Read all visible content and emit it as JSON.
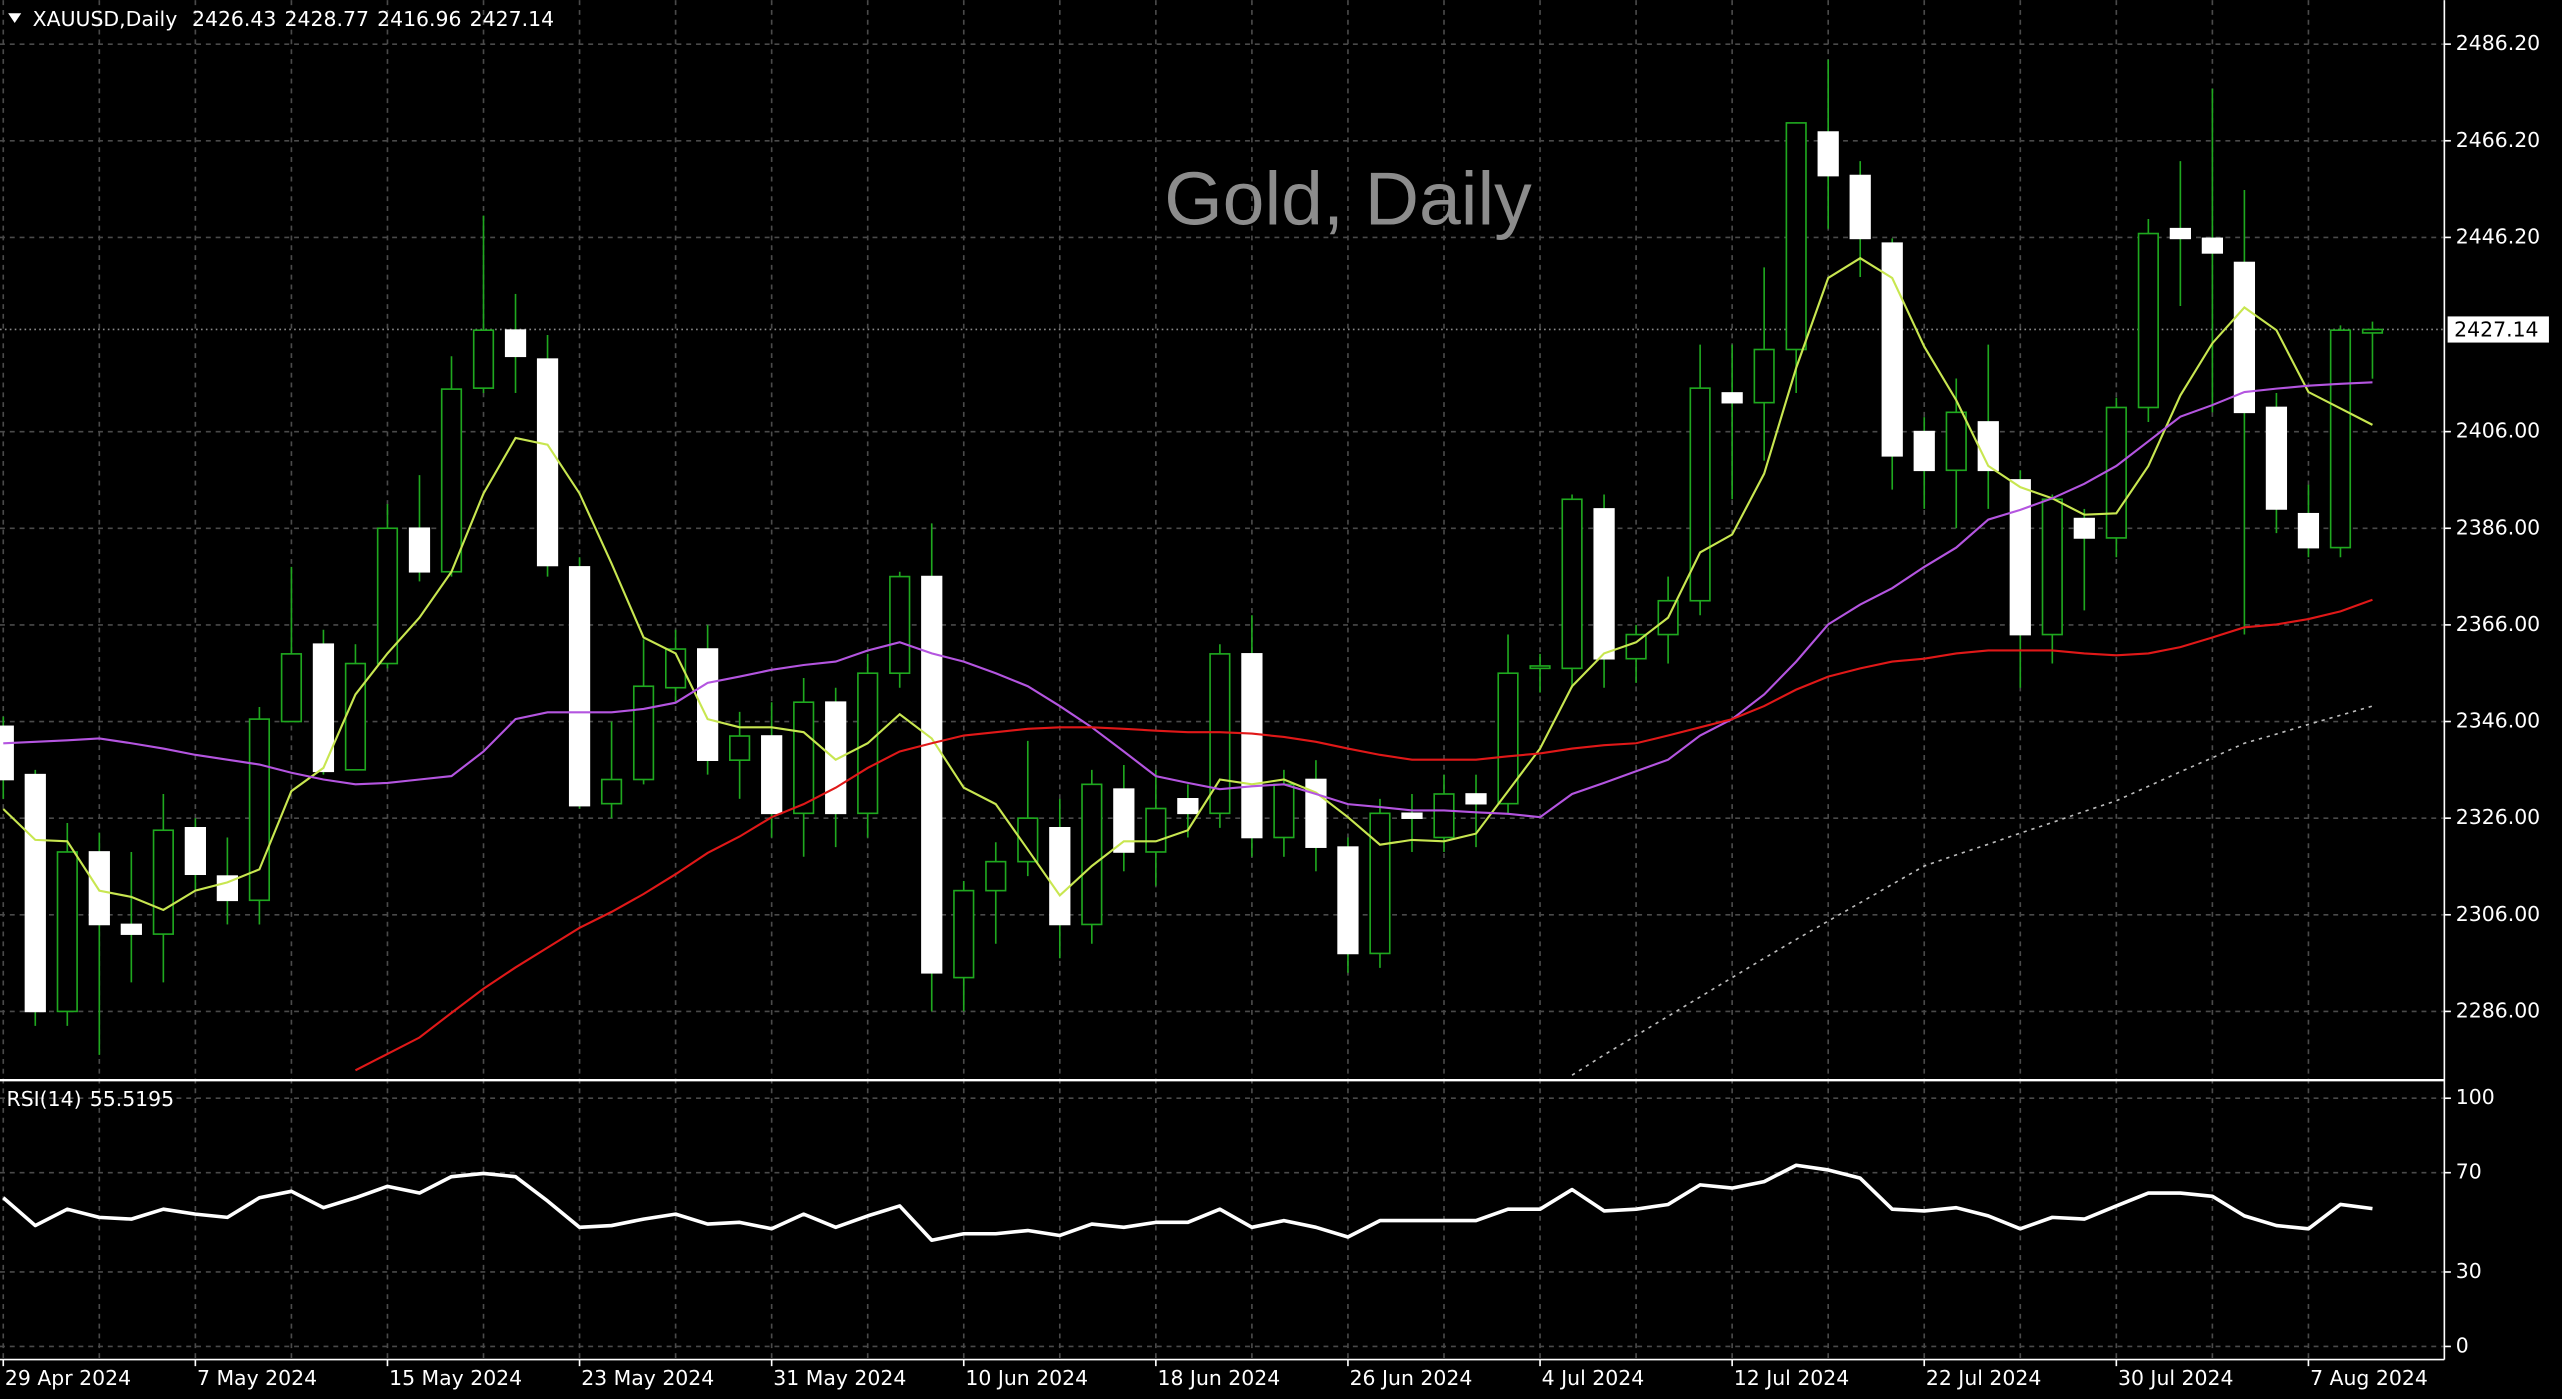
{
  "chart_data": [
    {
      "type": "candlestick",
      "symbol": "XAUUSD,Daily",
      "title": "Gold, Daily",
      "categories": [
        "29 Apr 2024",
        null,
        null,
        null,
        null,
        null,
        "7 May 2024",
        null,
        null,
        null,
        null,
        null,
        "15 May 2024",
        null,
        null,
        null,
        null,
        null,
        "23 May 2024",
        null,
        null,
        null,
        null,
        null,
        "31 May 2024",
        null,
        null,
        null,
        null,
        null,
        "10 Jun 2024",
        null,
        null,
        null,
        null,
        null,
        "18 Jun 2024",
        null,
        null,
        null,
        null,
        null,
        "26 Jun 2024",
        null,
        null,
        null,
        null,
        null,
        "4 Jul 2024",
        null,
        null,
        null,
        null,
        null,
        "12 Jul 2024",
        null,
        null,
        null,
        null,
        null,
        "22 Jul 2024",
        null,
        null,
        null,
        null,
        null,
        "30 Jul 2024",
        null,
        null,
        null,
        null,
        null,
        "7 Aug 2024",
        null,
        null
      ],
      "open": [
        2345,
        2335,
        2286,
        2319,
        2304,
        2302,
        2324,
        2314,
        2309,
        2346,
        2362,
        2336,
        2358,
        2386,
        2377,
        2415,
        2427,
        2421,
        2378,
        2329,
        2334,
        2353,
        2361,
        2338,
        2343,
        2327,
        2350,
        2327,
        2356,
        2376,
        2293,
        2311,
        2317,
        2324,
        2304,
        2332,
        2319,
        2330,
        2327,
        2360,
        2322,
        2334,
        2320,
        2298,
        2327,
        2322,
        2331,
        2329,
        2357,
        2357,
        2390,
        2359,
        2364,
        2371,
        2414,
        2412,
        2423,
        2468,
        2459,
        2445,
        2406,
        2398,
        2408,
        2396,
        2364,
        2388,
        2384,
        2411,
        2448,
        2446,
        2441,
        2411,
        2389,
        2382,
        2426.43
      ],
      "high": [
        2347,
        2336,
        2325,
        2323,
        2319,
        2331,
        2326,
        2322,
        2349,
        2378,
        2365,
        2362,
        2391,
        2397,
        2421.6,
        2450.7,
        2434.5,
        2426,
        2380,
        2346,
        2363,
        2365,
        2366,
        2348,
        2350,
        2355,
        2353,
        2360,
        2377,
        2387,
        2313,
        2321,
        2342,
        2330,
        2336,
        2337,
        2336,
        2333,
        2362,
        2368,
        2336,
        2338,
        2322,
        2330,
        2331,
        2335,
        2335,
        2364,
        2360,
        2393,
        2393,
        2366,
        2376,
        2424,
        2424,
        2440,
        2470,
        2483,
        2462,
        2446,
        2409,
        2417,
        2424,
        2398,
        2393,
        2390,
        2413,
        2450,
        2462,
        2477,
        2456,
        2414,
        2395,
        2428,
        2428.77
      ],
      "low": [
        2330,
        2283,
        2283,
        2277,
        2292,
        2292,
        2311,
        2304,
        2304,
        2346,
        2335,
        2336,
        2357,
        2375,
        2376,
        2414,
        2414,
        2376,
        2328,
        2326,
        2333,
        2350,
        2335,
        2330,
        2322,
        2318,
        2320,
        2322,
        2353,
        2286,
        2286,
        2300,
        2314,
        2297,
        2300,
        2315,
        2312,
        2322,
        2324,
        2318,
        2318,
        2315,
        2294,
        2295,
        2319,
        2319,
        2320,
        2327,
        2352,
        2353,
        2353,
        2354,
        2358,
        2368,
        2392,
        2400,
        2414,
        2448,
        2438,
        2394,
        2390,
        2386,
        2390,
        2353,
        2358,
        2369,
        2380,
        2408,
        2432,
        2410,
        2364,
        2385,
        2380,
        2380,
        2416.96
      ],
      "close": [
        2334,
        2286,
        2319,
        2304,
        2302,
        2323.5,
        2314.4,
        2309,
        2346.5,
        2360,
        2335.7,
        2358,
        2386,
        2377,
        2414.8,
        2427,
        2421.6,
        2378.3,
        2328.6,
        2334,
        2353.3,
        2361,
        2338,
        2343,
        2327,
        2350,
        2327,
        2356,
        2376,
        2294,
        2311,
        2317,
        2326,
        2304,
        2333,
        2319,
        2328,
        2327,
        2360,
        2322,
        2333,
        2320,
        2298,
        2327,
        2326,
        2331,
        2329,
        2356,
        2357.5,
        2392,
        2359,
        2364,
        2371,
        2415,
        2412,
        2423,
        2469.9,
        2459,
        2446,
        2401,
        2398,
        2410,
        2398,
        2364,
        2392,
        2384,
        2411,
        2447,
        2446,
        2443,
        2410,
        2390,
        2382,
        2427,
        2427.14
      ],
      "up_color": "#1fa81f",
      "down_color": "#ffffff",
      "lines": [
        {
          "color": "#c8e650",
          "style": "solid",
          "values": [
            2327.9,
            2321.5,
            2321.2,
            2311.0,
            2309.7,
            2307.0,
            2311.0,
            2312.7,
            2315.4,
            2331.6,
            2336.4,
            2351.6,
            2360.1,
            2367.5,
            2377.0,
            2393.2,
            2404.7,
            2403.3,
            2393.2,
            2378.7,
            2363.4,
            2360.1,
            2346.5,
            2344.8,
            2344.8,
            2343.8,
            2338.1,
            2341.5,
            2347.5,
            2342.5,
            2332.3,
            2328.9,
            2319.5,
            2310.0,
            2316.1,
            2321.2,
            2321.2,
            2323.5,
            2334.0,
            2333.0,
            2334.0,
            2331.3,
            2326.2,
            2320.5,
            2321.5,
            2321.2,
            2322.8,
            2331.6,
            2340.4,
            2353.3,
            2360.1,
            2362.4,
            2367.5,
            2381.0,
            2384.7,
            2397.3,
            2419.2,
            2437.8,
            2441.9,
            2437.8,
            2423.6,
            2412.5,
            2398.9,
            2394.5,
            2392.2,
            2388.8,
            2389.1,
            2398.9,
            2413.5,
            2424.3,
            2431.7,
            2427.0,
            2414.2,
            2410.8,
            2407.4
          ]
        },
        {
          "color": "#b455e0",
          "style": "solid",
          "values": [
            2341.5,
            2341.8,
            2342.1,
            2342.5,
            2341.5,
            2340.4,
            2339.1,
            2338.1,
            2337.1,
            2335.4,
            2334.0,
            2333.0,
            2333.3,
            2334.0,
            2334.7,
            2339.8,
            2346.5,
            2347.9,
            2347.9,
            2347.9,
            2348.6,
            2349.9,
            2354.0,
            2355.3,
            2356.7,
            2357.7,
            2358.4,
            2360.7,
            2362.4,
            2360.1,
            2358.4,
            2356.0,
            2353.3,
            2349.2,
            2344.8,
            2339.8,
            2334.7,
            2333.3,
            2332.0,
            2332.6,
            2333.0,
            2331.0,
            2328.9,
            2328.3,
            2327.6,
            2327.6,
            2327.2,
            2326.9,
            2326.2,
            2331.0,
            2333.3,
            2335.7,
            2338.1,
            2343.1,
            2346.5,
            2351.6,
            2358.4,
            2366.1,
            2370.2,
            2373.6,
            2378.0,
            2382.0,
            2387.8,
            2389.8,
            2392.2,
            2395.2,
            2398.9,
            2404.0,
            2409.1,
            2411.5,
            2414.2,
            2414.9,
            2415.5,
            2415.9,
            2416.2
          ]
        },
        {
          "color": "#e01818",
          "style": "solid",
          "values": [
            null,
            null,
            null,
            null,
            null,
            null,
            null,
            null,
            null,
            null,
            null,
            2273.8,
            2277.2,
            2280.6,
            2285.7,
            2290.7,
            2295.1,
            2299.2,
            2303.3,
            2306.6,
            2310.3,
            2314.4,
            2318.8,
            2322.2,
            2326.2,
            2328.9,
            2332.3,
            2336.4,
            2339.8,
            2341.5,
            2343.1,
            2343.8,
            2344.5,
            2344.8,
            2344.8,
            2344.5,
            2344.1,
            2343.8,
            2343.8,
            2343.5,
            2342.8,
            2341.8,
            2340.4,
            2339.1,
            2338.1,
            2338.1,
            2338.1,
            2338.8,
            2339.4,
            2340.4,
            2341.1,
            2341.5,
            2343.1,
            2344.8,
            2346.5,
            2349.2,
            2352.6,
            2355.3,
            2357.0,
            2358.4,
            2359.0,
            2360.1,
            2360.7,
            2360.7,
            2360.7,
            2360.1,
            2359.7,
            2360.1,
            2361.4,
            2363.4,
            2365.5,
            2366.1,
            2367.2,
            2368.8,
            2371.2
          ]
        },
        {
          "color": "#bdbdbd",
          "style": "dotted",
          "values": [
            null,
            null,
            null,
            null,
            null,
            null,
            null,
            null,
            null,
            null,
            null,
            null,
            null,
            null,
            null,
            null,
            null,
            null,
            null,
            null,
            null,
            null,
            null,
            null,
            null,
            null,
            null,
            null,
            null,
            null,
            null,
            null,
            null,
            null,
            null,
            null,
            null,
            null,
            null,
            null,
            null,
            null,
            null,
            null,
            null,
            null,
            null,
            null,
            null,
            2272.8,
            2277,
            2281,
            2285,
            2289,
            2293,
            2297,
            2300.9,
            2304.7,
            2308.5,
            2312.3,
            2316.1,
            2318.4,
            2320.6,
            2322.9,
            2325.1,
            2327.4,
            2329.6,
            2332.6,
            2335.6,
            2338.5,
            2341.5,
            2343.4,
            2345.4,
            2347.3,
            2349.2
          ]
        }
      ],
      "ylim": [
        2272.1,
        2495.3
      ],
      "yticks": [
        {
          "value": 2286,
          "label": "2286.00"
        },
        {
          "value": 2306,
          "label": "2306.00"
        },
        {
          "value": 2326,
          "label": "2326.00"
        },
        {
          "value": 2346,
          "label": "2346.00"
        },
        {
          "value": 2366,
          "label": "2366.00"
        },
        {
          "value": 2386,
          "label": "2386.00"
        },
        {
          "value": 2406,
          "label": "2406.00"
        },
        {
          "value": 2446.2,
          "label": "2446.20"
        },
        {
          "value": 2466.2,
          "label": "2466.20"
        },
        {
          "value": 2486.2,
          "label": "2486.20"
        }
      ],
      "grid": true
    },
    {
      "type": "line",
      "title": "RSI(14)",
      "color": "#ffffff",
      "values": [
        59.9,
        48.7,
        55.3,
        52.0,
        51.3,
        55.3,
        53.3,
        52.0,
        59.9,
        62.5,
        55.9,
        59.9,
        64.5,
        61.8,
        68.4,
        69.7,
        68.4,
        58.6,
        48.0,
        48.7,
        51.3,
        53.3,
        49.3,
        50.0,
        47.4,
        53.3,
        48.0,
        52.6,
        56.6,
        42.8,
        45.4,
        45.4,
        46.7,
        44.7,
        49.3,
        48.0,
        50.0,
        50.0,
        55.3,
        48.0,
        50.7,
        48.0,
        44.1,
        50.7,
        50.7,
        50.7,
        50.7,
        55.3,
        55.3,
        63.2,
        54.6,
        55.3,
        57.2,
        65.1,
        63.8,
        66.4,
        73.0,
        71.1,
        67.8,
        55.3,
        54.6,
        55.9,
        52.6,
        47.4,
        52.0,
        51.3,
        56.6,
        61.8,
        61.8,
        60.5,
        52.6,
        48.7,
        47.4,
        57.2,
        55.5195
      ],
      "ylim": [
        -5.3,
        106.6
      ],
      "yticks": [
        0,
        30,
        70,
        100
      ],
      "grid": true
    }
  ]
}
